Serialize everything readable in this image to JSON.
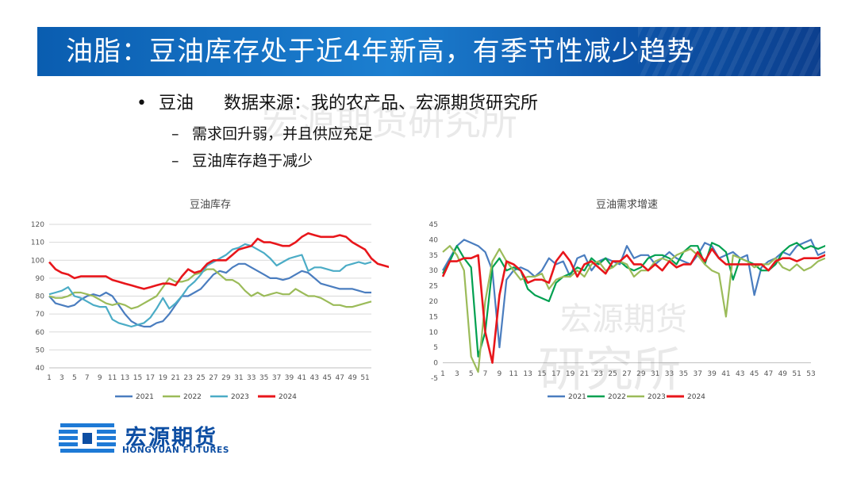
{
  "title": "油脂：豆油库存处于近4年新高，有季节性减少趋势",
  "bullets": {
    "b1_marker": "•",
    "b1_main": "豆油",
    "b1_source": "数据来源：我的农产品、宏源期货研究所",
    "sub_marker": "–",
    "b2": "需求回升弱，并且供应充足",
    "b3": "豆油库存趋于减少"
  },
  "watermarks": {
    "w1": "宏源期货研究所",
    "w2": "宏源期货",
    "w3": "研究所"
  },
  "logo": {
    "cn": "宏源期货",
    "en": "HONGYUAN FUTURES",
    "icon": "hongyuan-logo-icon"
  },
  "chart_data": [
    {
      "type": "line",
      "title": "豆油库存",
      "x_ticks": [
        "1",
        "3",
        "5",
        "7",
        "9",
        "11",
        "13",
        "15",
        "17",
        "19",
        "21",
        "23",
        "25",
        "27",
        "29",
        "31",
        "33",
        "35",
        "37",
        "39",
        "41",
        "43",
        "45",
        "47",
        "49",
        "51"
      ],
      "ylim": [
        40,
        120
      ],
      "y_ticks": [
        40,
        50,
        60,
        70,
        80,
        90,
        100,
        110,
        120
      ],
      "grid": true,
      "legend_position": "bottom",
      "series": [
        {
          "name": "2021",
          "color": "#4a7dbf",
          "values": [
            80,
            76,
            75,
            74,
            75,
            78,
            80,
            81,
            80,
            82,
            80,
            75,
            70,
            66,
            64,
            63,
            63,
            65,
            66,
            70,
            75,
            80,
            80,
            82,
            84,
            88,
            92,
            94,
            93,
            96,
            98,
            98,
            96,
            94,
            92,
            90,
            90,
            89,
            90,
            92,
            94,
            93,
            90,
            87,
            86,
            85,
            84,
            84,
            84,
            83,
            82,
            82
          ]
        },
        {
          "name": "2022",
          "color": "#9bbb59",
          "values": [
            80,
            79,
            79,
            80,
            82,
            82,
            81,
            80,
            78,
            76,
            75,
            76,
            75,
            73,
            74,
            76,
            78,
            80,
            85,
            90,
            88,
            88,
            89,
            92,
            93,
            95,
            95,
            92,
            89,
            89,
            87,
            83,
            80,
            82,
            80,
            81,
            82,
            81,
            81,
            84,
            82,
            80,
            80,
            79,
            77,
            75,
            75,
            74,
            74,
            75,
            76,
            77
          ]
        },
        {
          "name": "2023",
          "color": "#4bacc6",
          "values": [
            81,
            82,
            83,
            85,
            80,
            79,
            77,
            75,
            74,
            74,
            67,
            65,
            64,
            63,
            64,
            65,
            68,
            73,
            79,
            73,
            76,
            80,
            85,
            88,
            92,
            97,
            99,
            101,
            103,
            106,
            107,
            109,
            108,
            106,
            104,
            101,
            97,
            99,
            101,
            102,
            103,
            94,
            96,
            96,
            95,
            94,
            94,
            97,
            98,
            99,
            98,
            99
          ]
        },
        {
          "name": "2024",
          "color": "#e8161b",
          "values": [
            99,
            95,
            93,
            92,
            90,
            91,
            91,
            91,
            91,
            91,
            89,
            88,
            87,
            86,
            85,
            84,
            85,
            86,
            87,
            87,
            86,
            91,
            95,
            93,
            94,
            98,
            100,
            100,
            100,
            103,
            106,
            107,
            108,
            112,
            110,
            110,
            109,
            108,
            108,
            110,
            113,
            115,
            114,
            113,
            113,
            113,
            114,
            113,
            110,
            108,
            106,
            101,
            98,
            97,
            96,
            97
          ]
        }
      ]
    },
    {
      "type": "line",
      "title": "豆油需求增速",
      "x_ticks": [
        "1",
        "3",
        "5",
        "7",
        "9",
        "11",
        "13",
        "15",
        "17",
        "19",
        "21",
        "23",
        "25",
        "27",
        "29",
        "31",
        "33",
        "35",
        "37",
        "39",
        "41",
        "43",
        "45",
        "47",
        "49",
        "51",
        "53"
      ],
      "ylim": [
        -5,
        45
      ],
      "y_ticks": [
        -5,
        0,
        5,
        10,
        15,
        20,
        25,
        30,
        35,
        40,
        45
      ],
      "grid": false,
      "legend_position": "bottom",
      "series": [
        {
          "name": "2021",
          "color": "#4a7dbf",
          "values": [
            30,
            34,
            38,
            40,
            39,
            38,
            36,
            30,
            5,
            27,
            30,
            31,
            30,
            28,
            30,
            34,
            32,
            33,
            28,
            34,
            35,
            30,
            33,
            34,
            33,
            32,
            38,
            34,
            35,
            35,
            32,
            34,
            36,
            34,
            33,
            32,
            35,
            39,
            38,
            34,
            35,
            36,
            34,
            35,
            22,
            31,
            33,
            34,
            36,
            35,
            38,
            39,
            40,
            35,
            36,
            37,
            34,
            30
          ]
        },
        {
          "name": "2022",
          "color": "#00a050",
          "values": [
            29,
            33,
            38,
            34,
            31,
            2,
            10,
            31,
            34,
            30,
            31,
            30,
            24,
            22,
            21,
            20,
            26,
            28,
            29,
            31,
            30,
            34,
            32,
            34,
            31,
            33,
            31,
            30,
            31,
            34,
            35,
            35,
            34,
            32,
            36,
            38,
            38,
            32,
            39,
            38,
            36,
            27,
            34,
            33,
            32,
            30,
            30,
            32,
            36,
            38,
            39,
            37,
            38,
            37,
            38,
            39,
            35,
            35
          ]
        },
        {
          "name": "2023",
          "color": "#9bbb59",
          "values": [
            36,
            38,
            35,
            30,
            2,
            -3,
            20,
            33,
            37,
            33,
            30,
            27,
            28,
            28,
            29,
            24,
            27,
            28,
            28,
            30,
            28,
            32,
            33,
            30,
            31,
            33,
            32,
            28,
            30,
            30,
            33,
            34,
            33,
            35,
            36,
            37,
            35,
            32,
            30,
            29,
            15,
            35,
            34,
            33,
            31,
            32,
            32,
            34,
            31,
            30,
            32,
            30,
            31,
            33,
            34
          ]
        },
        {
          "name": "2024",
          "color": "#e8161b",
          "values": [
            28,
            33,
            33,
            34,
            34,
            35,
            10,
            0,
            22,
            33,
            32,
            30,
            26,
            27,
            27,
            26,
            33,
            36,
            33,
            28,
            32,
            33,
            31,
            29,
            33,
            33,
            35,
            32,
            32,
            30,
            32,
            30,
            33,
            31,
            32,
            32,
            36,
            33,
            37,
            34,
            32,
            32,
            32,
            32,
            32,
            32,
            30,
            33,
            34,
            34,
            33,
            34,
            34,
            34,
            35,
            35
          ]
        }
      ]
    }
  ]
}
